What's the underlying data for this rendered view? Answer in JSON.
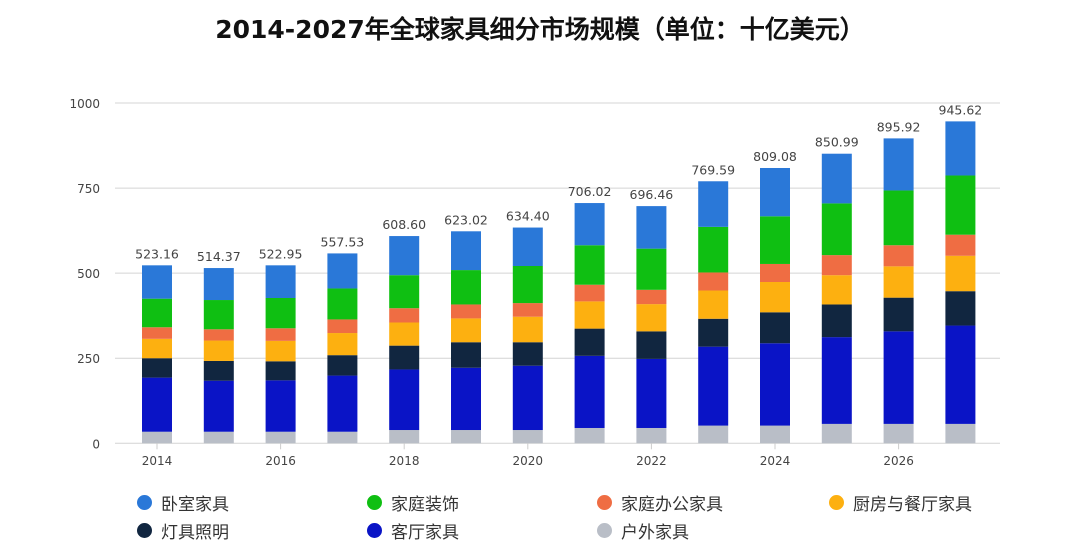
{
  "chart_data": {
    "type": "bar",
    "stacked": true,
    "title": "2014-2027年全球家具细分市场规模（单位：十亿美元）",
    "xlabel": "",
    "ylabel": "",
    "ylim": [
      0,
      1000
    ],
    "yticks": [
      "0",
      "250",
      "500",
      "750",
      "1000"
    ],
    "xtick_labels": [
      "2014",
      "2016",
      "2018",
      "2020",
      "2022",
      "2024",
      "2026"
    ],
    "grid": true,
    "legend_position": "bottom",
    "categories": [
      "2014",
      "2015",
      "2016",
      "2017",
      "2018",
      "2019",
      "2020",
      "2021",
      "2022",
      "2023",
      "2024",
      "2025",
      "2026",
      "2027"
    ],
    "totals": [
      "523.16",
      "514.37",
      "522.95",
      "557.53",
      "608.60",
      "623.02",
      "634.40",
      "706.02",
      "696.46",
      "769.59",
      "809.08",
      "850.99",
      "895.92",
      "945.62"
    ],
    "series": [
      {
        "name": "户外家具",
        "color": "#b9bec7",
        "values": [
          34,
          34,
          34,
          34,
          39,
          39,
          39,
          45,
          45,
          52,
          52,
          57,
          57,
          57
        ]
      },
      {
        "name": "客厅家具",
        "color": "#0a14c6",
        "values": [
          159,
          150,
          151,
          165,
          178,
          183,
          189,
          212,
          203,
          232,
          242,
          255,
          272,
          289
        ]
      },
      {
        "name": "灯具照明",
        "color": "#112640",
        "values": [
          57,
          58,
          56,
          60,
          70,
          75,
          69,
          80,
          81,
          82,
          91,
          96,
          99,
          101
        ]
      },
      {
        "name": "厨房与餐厅家具",
        "color": "#fdb010",
        "values": [
          57,
          60,
          60,
          65,
          68,
          70,
          75,
          80,
          80,
          83,
          89,
          86,
          92,
          104
        ]
      },
      {
        "name": "家庭办公家具",
        "color": "#ef6d43",
        "values": [
          34,
          33,
          37,
          40,
          42,
          41,
          40,
          49,
          42,
          53,
          53,
          59,
          62,
          62
        ]
      },
      {
        "name": "家庭装饰",
        "color": "#0fbf12",
        "values": [
          84,
          86,
          89,
          91,
          97,
          101,
          109,
          116,
          121,
          134,
          140,
          152,
          161,
          174
        ]
      },
      {
        "name": "卧室家具",
        "color": "#2a78d8",
        "values": [
          98,
          94,
          96,
          103,
          115,
          114,
          113,
          124,
          125,
          134,
          142,
          146,
          153,
          159
        ]
      }
    ],
    "legend_order": [
      6,
      5,
      4,
      3,
      2,
      1,
      0
    ]
  }
}
